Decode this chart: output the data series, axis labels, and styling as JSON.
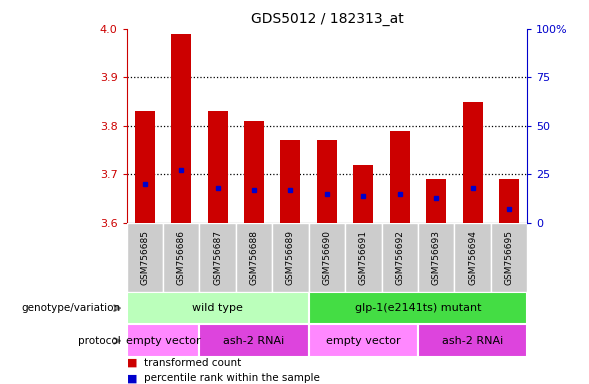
{
  "title": "GDS5012 / 182313_at",
  "samples": [
    "GSM756685",
    "GSM756686",
    "GSM756687",
    "GSM756688",
    "GSM756689",
    "GSM756690",
    "GSM756691",
    "GSM756692",
    "GSM756693",
    "GSM756694",
    "GSM756695"
  ],
  "transformed_counts": [
    3.83,
    3.99,
    3.83,
    3.81,
    3.77,
    3.77,
    3.72,
    3.79,
    3.69,
    3.85,
    3.69
  ],
  "percentile_ranks": [
    20,
    27,
    18,
    17,
    17,
    15,
    14,
    15,
    13,
    18,
    7
  ],
  "ylim_left": [
    3.6,
    4.0
  ],
  "ylim_right": [
    0,
    100
  ],
  "yticks_left": [
    3.6,
    3.7,
    3.8,
    3.9,
    4.0
  ],
  "yticks_right": [
    0,
    25,
    50,
    75,
    100
  ],
  "bar_color": "#cc0000",
  "percentile_color": "#0000cc",
  "bar_width": 0.55,
  "genotype_groups": [
    {
      "label": "wild type",
      "start": 0,
      "end": 5,
      "color": "#bbffbb"
    },
    {
      "label": "glp-1(e2141ts) mutant",
      "start": 5,
      "end": 11,
      "color": "#44dd44"
    }
  ],
  "protocol_groups": [
    {
      "label": "empty vector",
      "start": 0,
      "end": 2,
      "color": "#ff88ff"
    },
    {
      "label": "ash-2 RNAi",
      "start": 2,
      "end": 5,
      "color": "#dd44dd"
    },
    {
      "label": "empty vector",
      "start": 5,
      "end": 8,
      "color": "#ff88ff"
    },
    {
      "label": "ash-2 RNAi",
      "start": 8,
      "end": 11,
      "color": "#dd44dd"
    }
  ],
  "legend_items": [
    {
      "label": "transformed count",
      "color": "#cc0000"
    },
    {
      "label": "percentile rank within the sample",
      "color": "#0000cc"
    }
  ],
  "left_label_color": "#cc0000",
  "right_label_color": "#0000cc",
  "xticklabel_bg": "#cccccc",
  "grid_dotted_at": [
    25,
    50,
    75
  ]
}
